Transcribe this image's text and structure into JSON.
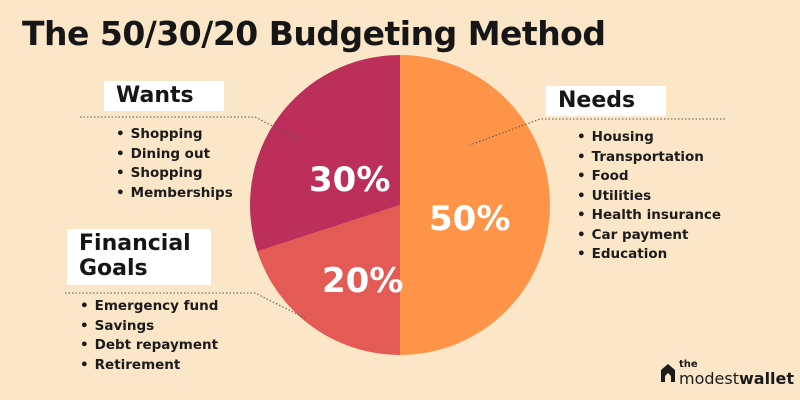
{
  "title": "The 50/30/20 Budgeting Method",
  "chart_data": {
    "type": "pie",
    "title": "The 50/30/20 Budgeting Method",
    "slices": [
      {
        "name": "Needs",
        "value": 50,
        "label": "50%",
        "color": "#fe9447"
      },
      {
        "name": "Financial Goals",
        "value": 20,
        "label": "20%",
        "color": "#e45a55"
      },
      {
        "name": "Wants",
        "value": 30,
        "label": "30%",
        "color": "#bc2f5b"
      }
    ]
  },
  "categories": {
    "wants": {
      "heading": "Wants",
      "items": [
        "Shopping",
        "Dining out",
        "Shopping",
        "Memberships"
      ]
    },
    "needs": {
      "heading": "Needs",
      "items": [
        "Housing",
        "Transportation",
        "Food",
        "Utilities",
        "Health insurance",
        "Car payment",
        "Education"
      ]
    },
    "financial_goals": {
      "heading_line1": "Financial",
      "heading_line2": "Goals",
      "items": [
        "Emergency fund",
        "Savings",
        "Debt repayment",
        "Retirement"
      ]
    }
  },
  "logo": {
    "prefix": "the",
    "name_regular": "modest",
    "name_bold": "wallet"
  },
  "colors": {
    "background": "#fbe6c8",
    "needs": "#fe9447",
    "wants": "#bc2f5b",
    "financial_goals": "#e45a55"
  }
}
